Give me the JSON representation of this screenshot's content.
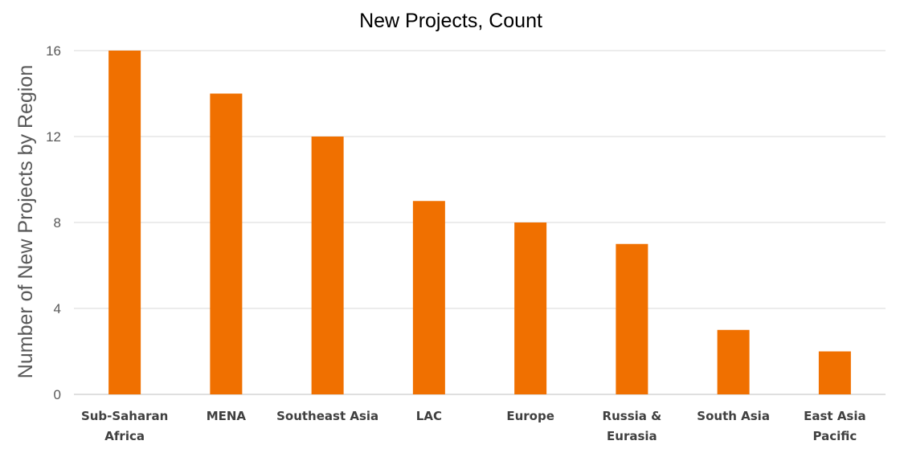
{
  "chart_data": {
    "type": "bar",
    "title": "New Projects, Count",
    "xlabel": "",
    "ylabel": "Number of New Projects by Region",
    "categories": [
      [
        "Sub-Saharan",
        "Africa"
      ],
      [
        "MENA"
      ],
      [
        "Southeast Asia"
      ],
      [
        "LAC"
      ],
      [
        "Europe"
      ],
      [
        "Russia &",
        "Eurasia"
      ],
      [
        "South Asia"
      ],
      [
        "East Asia",
        "Pacific"
      ]
    ],
    "values": [
      16,
      14,
      12,
      9,
      8,
      7,
      3,
      2
    ],
    "ylim": [
      0,
      16
    ],
    "yticks": [
      0,
      4,
      8,
      12,
      16
    ],
    "grid": true,
    "legend": "none",
    "bar_color": "#f07000"
  }
}
